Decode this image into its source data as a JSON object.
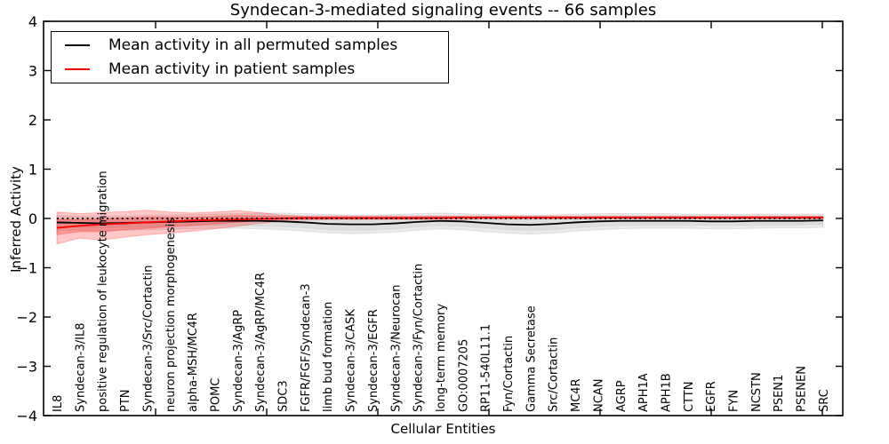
{
  "chart_data": {
    "type": "line",
    "title": "Syndecan-3-mediated signaling events -- 66 samples",
    "xlabel": "Cellular Entities",
    "ylabel": "Inferred Activity",
    "ylim": [
      -4,
      4
    ],
    "yticks": [
      -4,
      -3,
      -2,
      -1,
      0,
      1,
      2,
      3,
      4
    ],
    "grid": false,
    "legend_position": "upper left",
    "legend": [
      {
        "label": "Mean activity in all permuted samples",
        "color": "#000000"
      },
      {
        "label": "Mean activity in patient samples",
        "color": "#ff0000"
      }
    ],
    "categories": [
      "IL8",
      "Syndecan-3/IL8",
      "positive regulation of leukocyte migration",
      "PTN",
      "Syndecan-3/Src/Cortactin",
      "neuron projection morphogenesis",
      "alpha-MSH/MC4R",
      "POMC",
      "Syndecan-3/AgRP",
      "Syndecan-3/AgRP/MC4R",
      "SDC3",
      "FGFR/FGF/Syndecan-3",
      "limb bud formation",
      "Syndecan-3/CASK",
      "Syndecan-3/EGFR",
      "Syndecan-3/Neurocan",
      "Syndecan-3/Fyn/Cortactin",
      "long-term memory",
      "GO:0007205",
      "RP11-540L11.1",
      "Fyn/Cortactin",
      "Gamma Secretase",
      "Src/Cortactin",
      "MC4R",
      "NCAN",
      "AGRP",
      "APH1A",
      "APH1B",
      "CTTN",
      "EGFR",
      "FYN",
      "NCSTN",
      "PSEN1",
      "PSENEN",
      "SRC"
    ],
    "series": [
      {
        "name": "Mean activity in all permuted samples",
        "color": "#000000",
        "values": [
          -0.08,
          -0.09,
          -0.1,
          -0.09,
          -0.08,
          -0.07,
          -0.06,
          -0.05,
          -0.05,
          -0.05,
          -0.06,
          -0.08,
          -0.11,
          -0.12,
          -0.12,
          -0.1,
          -0.07,
          -0.05,
          -0.06,
          -0.09,
          -0.12,
          -0.13,
          -0.11,
          -0.08,
          -0.06,
          -0.05,
          -0.05,
          -0.05,
          -0.05,
          -0.06,
          -0.06,
          -0.05,
          -0.05,
          -0.05,
          -0.04
        ]
      },
      {
        "name": "Mean activity in patient samples",
        "color": "#ff0000",
        "values": [
          -0.19,
          -0.15,
          -0.12,
          -0.1,
          -0.08,
          -0.06,
          -0.04,
          -0.03,
          -0.02,
          -0.01,
          0.0,
          0.01,
          0.01,
          0.01,
          0.01,
          0.01,
          0.01,
          0.01,
          0.02,
          0.02,
          0.02,
          0.02,
          0.02,
          0.02,
          0.02,
          0.02,
          0.02,
          0.02,
          0.02,
          0.02,
          0.02,
          0.02,
          0.02,
          0.02,
          0.02
        ]
      }
    ],
    "bands": [
      {
        "name": "permuted-outer",
        "series": "Mean activity in all permuted samples",
        "color": "#00000015",
        "hi": [
          0.06,
          0.05,
          0.05,
          0.05,
          0.06,
          0.07,
          0.08,
          0.09,
          0.1,
          0.11,
          0.11,
          0.1,
          0.08,
          0.07,
          0.07,
          0.08,
          0.1,
          0.11,
          0.1,
          0.08,
          0.07,
          0.06,
          0.07,
          0.09,
          0.1,
          0.1,
          0.1,
          0.1,
          0.09,
          0.08,
          0.08,
          0.09,
          0.09,
          0.09,
          0.09
        ],
        "lo": [
          -0.24,
          -0.24,
          -0.25,
          -0.24,
          -0.23,
          -0.22,
          -0.21,
          -0.2,
          -0.2,
          -0.21,
          -0.23,
          -0.26,
          -0.29,
          -0.31,
          -0.3,
          -0.28,
          -0.24,
          -0.21,
          -0.23,
          -0.27,
          -0.3,
          -0.32,
          -0.3,
          -0.26,
          -0.23,
          -0.21,
          -0.2,
          -0.2,
          -0.2,
          -0.21,
          -0.21,
          -0.2,
          -0.19,
          -0.19,
          -0.18
        ]
      },
      {
        "name": "permuted-inner",
        "series": "Mean activity in all permuted samples",
        "color": "#0000000d",
        "hi": [
          0.0,
          -0.01,
          -0.01,
          -0.01,
          0.0,
          0.01,
          0.02,
          0.03,
          0.04,
          0.05,
          0.04,
          0.03,
          0.01,
          0.0,
          0.0,
          0.01,
          0.03,
          0.05,
          0.04,
          0.01,
          -0.01,
          -0.02,
          -0.01,
          0.02,
          0.04,
          0.04,
          0.04,
          0.04,
          0.04,
          0.03,
          0.03,
          0.04,
          0.04,
          0.04,
          0.04
        ],
        "lo": [
          -0.18,
          -0.18,
          -0.19,
          -0.18,
          -0.17,
          -0.16,
          -0.15,
          -0.14,
          -0.14,
          -0.15,
          -0.16,
          -0.19,
          -0.22,
          -0.24,
          -0.23,
          -0.21,
          -0.17,
          -0.14,
          -0.16,
          -0.19,
          -0.22,
          -0.24,
          -0.22,
          -0.19,
          -0.16,
          -0.14,
          -0.13,
          -0.13,
          -0.13,
          -0.14,
          -0.14,
          -0.13,
          -0.13,
          -0.13,
          -0.12
        ]
      },
      {
        "name": "patient-outer",
        "series": "Mean activity in patient samples",
        "color": "#ff000038",
        "hi": [
          0.13,
          0.1,
          0.12,
          0.14,
          0.17,
          0.13,
          0.11,
          0.13,
          0.16,
          0.12,
          0.07,
          0.05,
          0.05,
          0.05,
          0.05,
          0.05,
          0.05,
          0.05,
          0.05,
          0.05,
          0.05,
          0.05,
          0.05,
          0.05,
          0.05,
          0.05,
          0.05,
          0.05,
          0.05,
          0.05,
          0.05,
          0.05,
          0.05,
          0.05,
          0.05
        ],
        "lo": [
          -0.52,
          -0.4,
          -0.44,
          -0.38,
          -0.33,
          -0.3,
          -0.26,
          -0.21,
          -0.16,
          -0.1,
          -0.05,
          -0.03,
          -0.02,
          -0.02,
          -0.02,
          -0.02,
          -0.02,
          -0.02,
          -0.02,
          -0.01,
          -0.01,
          -0.01,
          -0.01,
          -0.01,
          -0.01,
          -0.01,
          -0.01,
          -0.01,
          -0.01,
          -0.01,
          -0.01,
          -0.01,
          -0.01,
          -0.01,
          -0.01
        ]
      },
      {
        "name": "patient-inner",
        "series": "Mean activity in patient samples",
        "color": "#ff000038",
        "hi": [
          -0.02,
          -0.03,
          -0.01,
          0.01,
          0.03,
          0.03,
          0.03,
          0.04,
          0.06,
          0.05,
          0.04,
          0.03,
          0.03,
          0.03,
          0.03,
          0.03,
          0.03,
          0.03,
          0.03,
          0.03,
          0.03,
          0.03,
          0.03,
          0.03,
          0.03,
          0.03,
          0.03,
          0.03,
          0.03,
          0.03,
          0.03,
          0.03,
          0.03,
          0.03,
          0.03
        ],
        "lo": [
          -0.33,
          -0.27,
          -0.27,
          -0.23,
          -0.2,
          -0.17,
          -0.14,
          -0.11,
          -0.08,
          -0.05,
          -0.02,
          -0.01,
          -0.01,
          -0.01,
          -0.01,
          -0.01,
          -0.01,
          -0.01,
          0.0,
          0.0,
          0.0,
          0.0,
          0.0,
          0.0,
          0.0,
          0.0,
          0.0,
          0.0,
          0.0,
          0.0,
          0.0,
          0.0,
          0.0,
          0.0,
          0.0
        ]
      }
    ],
    "zero_line": {
      "y": 0,
      "style": "dotted",
      "color": "#000000"
    }
  }
}
